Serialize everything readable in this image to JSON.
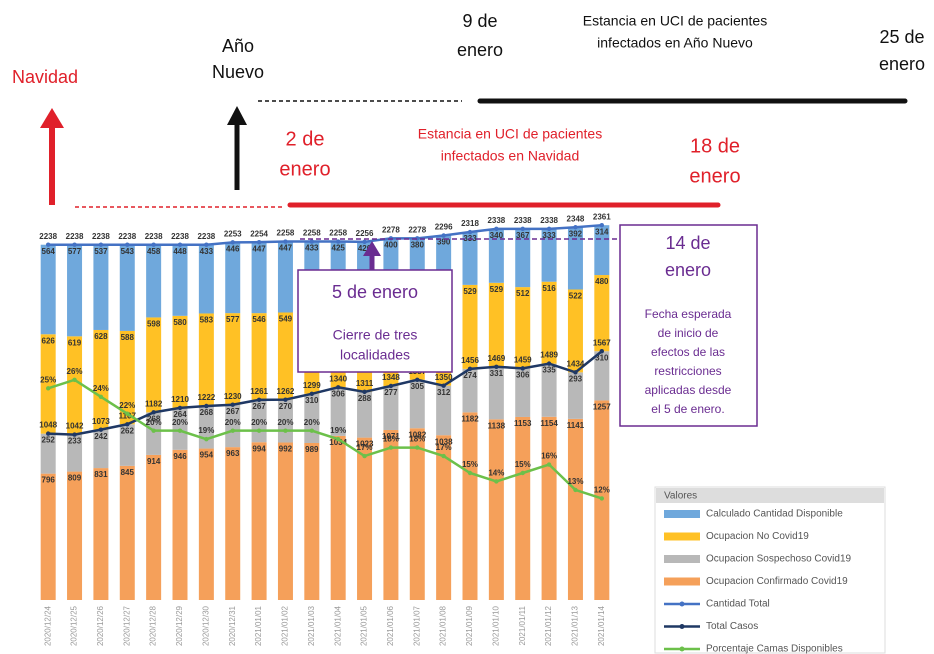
{
  "chart_data": {
    "type": "bar",
    "stacked": true,
    "categories": [
      "2020/12/24",
      "2020/12/25",
      "2020/12/26",
      "2020/12/27",
      "2020/12/28",
      "2020/12/29",
      "2020/12/30",
      "2020/12/31",
      "2021/01/01",
      "2021/01/02",
      "2021/01/03",
      "2021/01/04",
      "2021/01/05",
      "2021/01/06",
      "2021/01/07",
      "2021/01/08",
      "2021/01/09",
      "2021/01/10",
      "2021/01/11",
      "2021/01/12",
      "2021/01/13",
      "2021/01/14"
    ],
    "ylim": [
      0,
      2400
    ],
    "y2lim": [
      0,
      45
    ],
    "legend_title": "Valores",
    "series": [
      {
        "name": "Calculado Cantidad Disponible",
        "color": "#6fa8dc",
        "type": "bar",
        "values": [
          564,
          577,
          537,
          543,
          458,
          448,
          433,
          446,
          447,
          447,
          433,
          425,
          420,
          400,
          380,
          390,
          333,
          340,
          367,
          333,
          392,
          314
        ]
      },
      {
        "name": "Ocupacion No Covid19",
        "color": "#ffc125",
        "type": "bar",
        "values": [
          626,
          619,
          628,
          588,
          598,
          580,
          583,
          577,
          546,
          549,
          526,
          493,
          525,
          530,
          511,
          556,
          529,
          529,
          512,
          516,
          522,
          480
        ]
      },
      {
        "name": "Ocupacion Sospechoso Covid19",
        "color": "#b8b8b8",
        "type": "bar",
        "values": [
          252,
          233,
          242,
          262,
          268,
          264,
          268,
          267,
          267,
          270,
          310,
          306,
          288,
          277,
          305,
          312,
          274,
          331,
          306,
          335,
          293,
          310
        ]
      },
      {
        "name": "Ocupacion Confirmado Covid19",
        "color": "#f5a05a",
        "type": "bar",
        "values": [
          796,
          809,
          831,
          845,
          914,
          946,
          954,
          963,
          994,
          992,
          989,
          1034,
          1023,
          1071,
          1082,
          1038,
          1182,
          1138,
          1153,
          1154,
          1141,
          1257
        ]
      },
      {
        "name": "Cantidad Total",
        "color": "#4472c4",
        "type": "line",
        "values": [
          2238,
          2238,
          2238,
          2238,
          2238,
          2238,
          2238,
          2253,
          2254,
          2258,
          2258,
          2258,
          2256,
          2278,
          2278,
          2296,
          2318,
          2338,
          2338,
          2338,
          2348,
          2361
        ]
      },
      {
        "name": "Total Casos",
        "color": "#1f3864",
        "type": "line",
        "values": [
          1048,
          1042,
          1073,
          1107,
          1182,
          1210,
          1222,
          1230,
          1261,
          1262,
          1299,
          1340,
          1311,
          1348,
          1387,
          1350,
          1456,
          1469,
          1459,
          1489,
          1434,
          1567
        ]
      },
      {
        "name": "Porcentaje Camas Disponibles",
        "color": "#6cc04a",
        "type": "line",
        "axis": "y2",
        "values": [
          25,
          26,
          24,
          22,
          20,
          20,
          19,
          20,
          20,
          20,
          20,
          19,
          17,
          18,
          18,
          17,
          15,
          14,
          15,
          16,
          13,
          12
        ],
        "value_labels": [
          "25%",
          "26%",
          "24%",
          "22%",
          "20%",
          "20%",
          "19%",
          "20%",
          "20%",
          "20%",
          "20%",
          "19%",
          "17%",
          "18%",
          "18%",
          "17%",
          "15%",
          "14%",
          "15%",
          "16%",
          "13%",
          "12%"
        ]
      }
    ]
  },
  "annotations": [
    {
      "lines": [
        "Navidad"
      ]
    },
    {
      "lines": [
        "Año",
        "Nuevo"
      ]
    },
    {
      "lines": [
        "9 de",
        "enero"
      ]
    },
    {
      "lines": [
        "Estancia en UCI de pacientes",
        "infectados en Año Nuevo"
      ]
    },
    {
      "lines": [
        "25 de",
        "enero"
      ]
    },
    {
      "lines": [
        "2 de",
        "enero"
      ]
    },
    {
      "lines": [
        "Estancia en UCI de pacientes",
        "infectados en Navidad"
      ]
    },
    {
      "lines": [
        "18 de",
        "enero"
      ]
    },
    {
      "lines": [
        "5 de enero",
        "Cierre de tres",
        "localidades"
      ]
    },
    {
      "lines": [
        "14 de",
        "enero",
        "Fecha esperada",
        "de inicio de",
        "efectos de las",
        "restricciones",
        "aplicadas desde",
        "el 5 de enero."
      ]
    }
  ]
}
